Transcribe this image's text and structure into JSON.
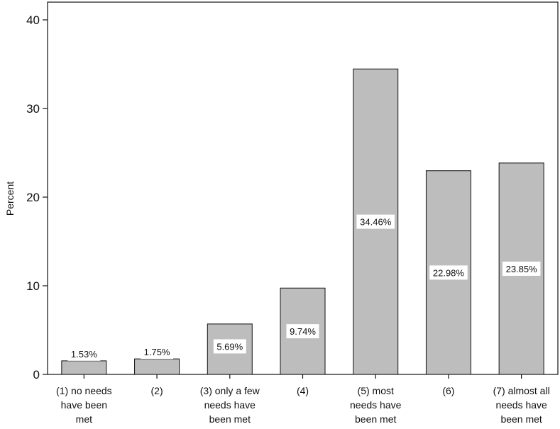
{
  "chart_data": {
    "type": "bar",
    "title": "",
    "xlabel": "",
    "ylabel": "Percent",
    "ylim": [
      0,
      42
    ],
    "yticks": [
      0,
      10,
      20,
      30,
      40
    ],
    "ytick_labels": [
      "0",
      "10",
      "20",
      "30",
      "40"
    ],
    "grid": false,
    "categories": [
      [
        "(1) no needs",
        "have been",
        "met"
      ],
      [
        "(2)"
      ],
      [
        "(3) only a few",
        "needs have",
        "been met"
      ],
      [
        "(4)"
      ],
      [
        "(5) most",
        "needs have",
        "been met"
      ],
      [
        "(6)"
      ],
      [
        "(7) almost all",
        "needs have",
        "been met"
      ]
    ],
    "values": [
      1.53,
      1.75,
      5.69,
      9.74,
      34.46,
      22.98,
      23.85
    ],
    "data_labels": [
      "1.53%",
      "1.75%",
      "5.69%",
      "9.74%",
      "34.46%",
      "22.98%",
      "23.85%"
    ],
    "bar_color": "#bdbdbd",
    "bar_edge_color": "#111111"
  }
}
